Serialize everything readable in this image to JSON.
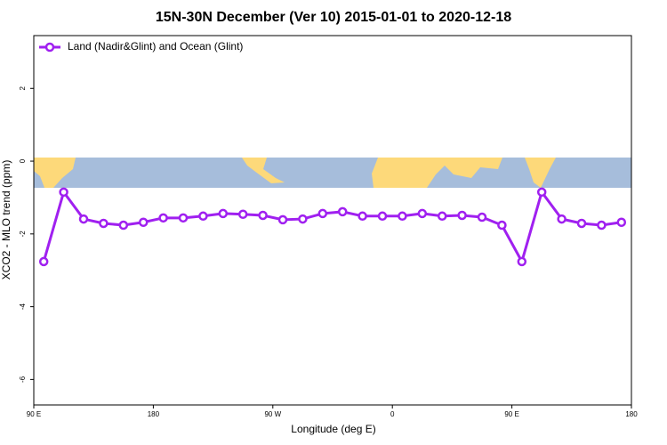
{
  "chart_data": {
    "type": "line",
    "title": "15N-30N December (Ver 10)   2015-01-01 to 2020-12-18",
    "xlabel": "Longitude (deg E)",
    "ylabel": "XCO2 - MLO trend (ppm)",
    "x": [
      97.5,
      112.5,
      127.5,
      142.5,
      157.5,
      172.5,
      187.5,
      202.5,
      217.5,
      232.5,
      247.5,
      262.5,
      277.5,
      292.5,
      307.5,
      322.5,
      337.5,
      352.5,
      367.5,
      382.5,
      397.5,
      412.5,
      427.5,
      442.5,
      457.5,
      472.5,
      487.5,
      502.5,
      517.5,
      532.5
    ],
    "series": [
      {
        "name": "Land (Nadir&Glint) and Ocean (Glint)",
        "color": "#a020f0",
        "values": [
          -2.76,
          -0.85,
          -1.59,
          -1.71,
          -1.76,
          -1.68,
          -1.56,
          -1.56,
          -1.51,
          -1.44,
          -1.46,
          -1.49,
          -1.61,
          -1.59,
          -1.44,
          -1.39,
          -1.51,
          -1.51,
          -1.51,
          -1.44,
          -1.51,
          -1.49,
          -1.54,
          -1.76,
          -2.76,
          -0.85,
          -1.59,
          -1.71,
          -1.76,
          -1.68
        ]
      }
    ],
    "xlim": [
      90,
      540
    ],
    "xticks": [
      {
        "value": 90,
        "label": "90 E"
      },
      180,
      {
        "value": 270,
        "label": "90 W"
      },
      {
        "value": 360,
        "label": "0"
      },
      {
        "value": 450,
        "label": "90 E"
      },
      {
        "value": 540,
        "label": "180"
      }
    ],
    "ylim": [
      -6.7,
      3.45
    ],
    "yticks": [
      -6,
      -4,
      -2,
      0,
      2
    ],
    "legend": "top-left"
  }
}
